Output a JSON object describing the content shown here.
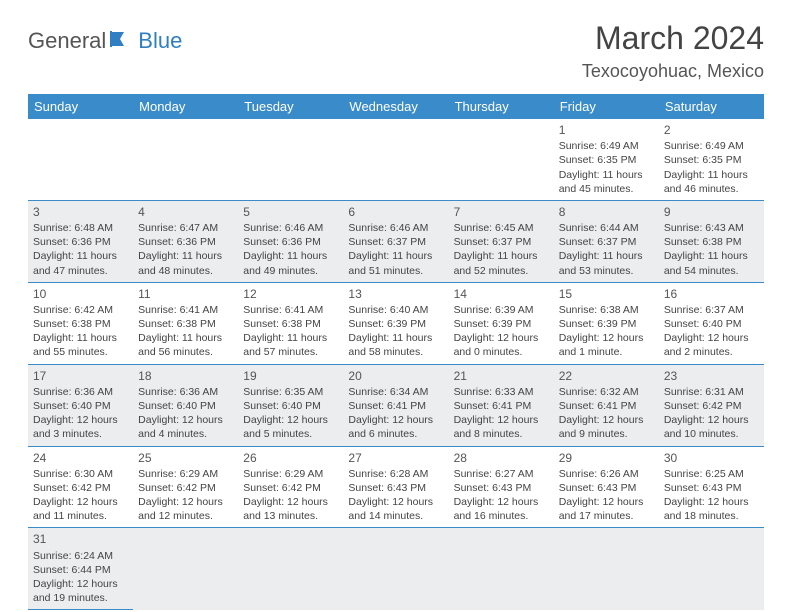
{
  "logo": {
    "part1": "General",
    "part2": "Blue"
  },
  "title": "March 2024",
  "location": "Texocoyohuac, Mexico",
  "colors": {
    "header_bg": "#3a8bc9",
    "header_text": "#ffffff",
    "shade_bg": "#ebedee",
    "border": "#3a8bc9",
    "logo_blue": "#2f7fc2",
    "text": "#444444"
  },
  "daynames": [
    "Sunday",
    "Monday",
    "Tuesday",
    "Wednesday",
    "Thursday",
    "Friday",
    "Saturday"
  ],
  "weeks": [
    {
      "shade": false,
      "days": [
        null,
        null,
        null,
        null,
        null,
        {
          "n": "1",
          "sr": "Sunrise: 6:49 AM",
          "ss": "Sunset: 6:35 PM",
          "d1": "Daylight: 11 hours",
          "d2": "and 45 minutes."
        },
        {
          "n": "2",
          "sr": "Sunrise: 6:49 AM",
          "ss": "Sunset: 6:35 PM",
          "d1": "Daylight: 11 hours",
          "d2": "and 46 minutes."
        }
      ]
    },
    {
      "shade": true,
      "days": [
        {
          "n": "3",
          "sr": "Sunrise: 6:48 AM",
          "ss": "Sunset: 6:36 PM",
          "d1": "Daylight: 11 hours",
          "d2": "and 47 minutes."
        },
        {
          "n": "4",
          "sr": "Sunrise: 6:47 AM",
          "ss": "Sunset: 6:36 PM",
          "d1": "Daylight: 11 hours",
          "d2": "and 48 minutes."
        },
        {
          "n": "5",
          "sr": "Sunrise: 6:46 AM",
          "ss": "Sunset: 6:36 PM",
          "d1": "Daylight: 11 hours",
          "d2": "and 49 minutes."
        },
        {
          "n": "6",
          "sr": "Sunrise: 6:46 AM",
          "ss": "Sunset: 6:37 PM",
          "d1": "Daylight: 11 hours",
          "d2": "and 51 minutes."
        },
        {
          "n": "7",
          "sr": "Sunrise: 6:45 AM",
          "ss": "Sunset: 6:37 PM",
          "d1": "Daylight: 11 hours",
          "d2": "and 52 minutes."
        },
        {
          "n": "8",
          "sr": "Sunrise: 6:44 AM",
          "ss": "Sunset: 6:37 PM",
          "d1": "Daylight: 11 hours",
          "d2": "and 53 minutes."
        },
        {
          "n": "9",
          "sr": "Sunrise: 6:43 AM",
          "ss": "Sunset: 6:38 PM",
          "d1": "Daylight: 11 hours",
          "d2": "and 54 minutes."
        }
      ]
    },
    {
      "shade": false,
      "days": [
        {
          "n": "10",
          "sr": "Sunrise: 6:42 AM",
          "ss": "Sunset: 6:38 PM",
          "d1": "Daylight: 11 hours",
          "d2": "and 55 minutes."
        },
        {
          "n": "11",
          "sr": "Sunrise: 6:41 AM",
          "ss": "Sunset: 6:38 PM",
          "d1": "Daylight: 11 hours",
          "d2": "and 56 minutes."
        },
        {
          "n": "12",
          "sr": "Sunrise: 6:41 AM",
          "ss": "Sunset: 6:38 PM",
          "d1": "Daylight: 11 hours",
          "d2": "and 57 minutes."
        },
        {
          "n": "13",
          "sr": "Sunrise: 6:40 AM",
          "ss": "Sunset: 6:39 PM",
          "d1": "Daylight: 11 hours",
          "d2": "and 58 minutes."
        },
        {
          "n": "14",
          "sr": "Sunrise: 6:39 AM",
          "ss": "Sunset: 6:39 PM",
          "d1": "Daylight: 12 hours",
          "d2": "and 0 minutes."
        },
        {
          "n": "15",
          "sr": "Sunrise: 6:38 AM",
          "ss": "Sunset: 6:39 PM",
          "d1": "Daylight: 12 hours",
          "d2": "and 1 minute."
        },
        {
          "n": "16",
          "sr": "Sunrise: 6:37 AM",
          "ss": "Sunset: 6:40 PM",
          "d1": "Daylight: 12 hours",
          "d2": "and 2 minutes."
        }
      ]
    },
    {
      "shade": true,
      "days": [
        {
          "n": "17",
          "sr": "Sunrise: 6:36 AM",
          "ss": "Sunset: 6:40 PM",
          "d1": "Daylight: 12 hours",
          "d2": "and 3 minutes."
        },
        {
          "n": "18",
          "sr": "Sunrise: 6:36 AM",
          "ss": "Sunset: 6:40 PM",
          "d1": "Daylight: 12 hours",
          "d2": "and 4 minutes."
        },
        {
          "n": "19",
          "sr": "Sunrise: 6:35 AM",
          "ss": "Sunset: 6:40 PM",
          "d1": "Daylight: 12 hours",
          "d2": "and 5 minutes."
        },
        {
          "n": "20",
          "sr": "Sunrise: 6:34 AM",
          "ss": "Sunset: 6:41 PM",
          "d1": "Daylight: 12 hours",
          "d2": "and 6 minutes."
        },
        {
          "n": "21",
          "sr": "Sunrise: 6:33 AM",
          "ss": "Sunset: 6:41 PM",
          "d1": "Daylight: 12 hours",
          "d2": "and 8 minutes."
        },
        {
          "n": "22",
          "sr": "Sunrise: 6:32 AM",
          "ss": "Sunset: 6:41 PM",
          "d1": "Daylight: 12 hours",
          "d2": "and 9 minutes."
        },
        {
          "n": "23",
          "sr": "Sunrise: 6:31 AM",
          "ss": "Sunset: 6:42 PM",
          "d1": "Daylight: 12 hours",
          "d2": "and 10 minutes."
        }
      ]
    },
    {
      "shade": false,
      "days": [
        {
          "n": "24",
          "sr": "Sunrise: 6:30 AM",
          "ss": "Sunset: 6:42 PM",
          "d1": "Daylight: 12 hours",
          "d2": "and 11 minutes."
        },
        {
          "n": "25",
          "sr": "Sunrise: 6:29 AM",
          "ss": "Sunset: 6:42 PM",
          "d1": "Daylight: 12 hours",
          "d2": "and 12 minutes."
        },
        {
          "n": "26",
          "sr": "Sunrise: 6:29 AM",
          "ss": "Sunset: 6:42 PM",
          "d1": "Daylight: 12 hours",
          "d2": "and 13 minutes."
        },
        {
          "n": "27",
          "sr": "Sunrise: 6:28 AM",
          "ss": "Sunset: 6:43 PM",
          "d1": "Daylight: 12 hours",
          "d2": "and 14 minutes."
        },
        {
          "n": "28",
          "sr": "Sunrise: 6:27 AM",
          "ss": "Sunset: 6:43 PM",
          "d1": "Daylight: 12 hours",
          "d2": "and 16 minutes."
        },
        {
          "n": "29",
          "sr": "Sunrise: 6:26 AM",
          "ss": "Sunset: 6:43 PM",
          "d1": "Daylight: 12 hours",
          "d2": "and 17 minutes."
        },
        {
          "n": "30",
          "sr": "Sunrise: 6:25 AM",
          "ss": "Sunset: 6:43 PM",
          "d1": "Daylight: 12 hours",
          "d2": "and 18 minutes."
        }
      ]
    },
    {
      "shade": true,
      "days": [
        {
          "n": "31",
          "sr": "Sunrise: 6:24 AM",
          "ss": "Sunset: 6:44 PM",
          "d1": "Daylight: 12 hours",
          "d2": "and 19 minutes."
        },
        null,
        null,
        null,
        null,
        null,
        null
      ]
    }
  ]
}
